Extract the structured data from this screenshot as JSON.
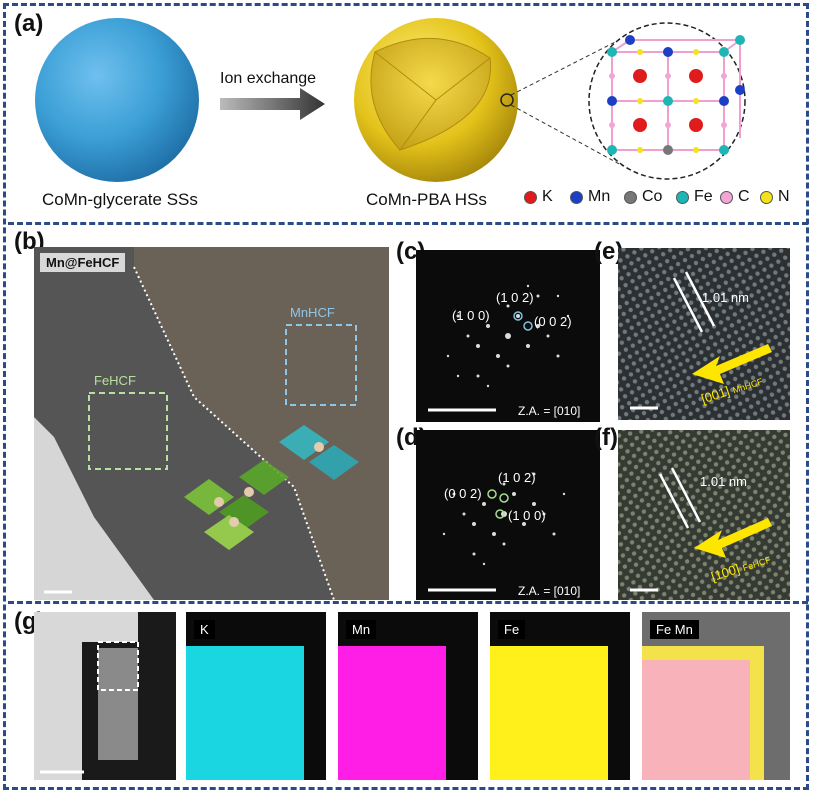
{
  "panels": {
    "a": {
      "label": "(a)",
      "left_caption": "CoMn-glycerate SSs",
      "arrow_text": "Ion exchange",
      "right_caption": "CoMn-PBA HSs",
      "legend": [
        {
          "text": "K",
          "color": "#e01b1b"
        },
        {
          "text": "Mn",
          "color": "#1c3fc4"
        },
        {
          "text": "Co",
          "color": "#777777"
        },
        {
          "text": "Fe",
          "color": "#1fb5b5"
        },
        {
          "text": "C",
          "color": "#f3a6d6"
        },
        {
          "text": "N",
          "color": "#f2e21b"
        }
      ]
    },
    "b": {
      "label": "(b)",
      "tag": "Mn@FeHCF",
      "region1": "MnHCF",
      "region2": "FeHCF"
    },
    "c": {
      "label": "(c)",
      "spot1": "(1 0 2)",
      "spot2": "(1 0 0)",
      "spot3": "(0 0 2)",
      "za": "Z.A. = [010]"
    },
    "d": {
      "label": "(d)",
      "spot1": "(1 0 2)",
      "spot2": "(0 0 2)",
      "spot3": "(1 0 0)",
      "za": "Z.A. = [010]"
    },
    "e": {
      "label": "(e)",
      "spacing": "1.01 nm",
      "dir": "[001]",
      "dir_sub": "MnHCF"
    },
    "f": {
      "label": "(f)",
      "spacing": "1.01 nm",
      "dir": "[100]",
      "dir_sub": "FeHCF"
    },
    "g": {
      "label": "(g)",
      "maps": [
        "K",
        "Mn",
        "Fe",
        "Fe Mn"
      ],
      "map_colors": [
        "#19d6e0",
        "#ff1ee6",
        "#fff01b",
        "#f7b3b9"
      ]
    }
  }
}
